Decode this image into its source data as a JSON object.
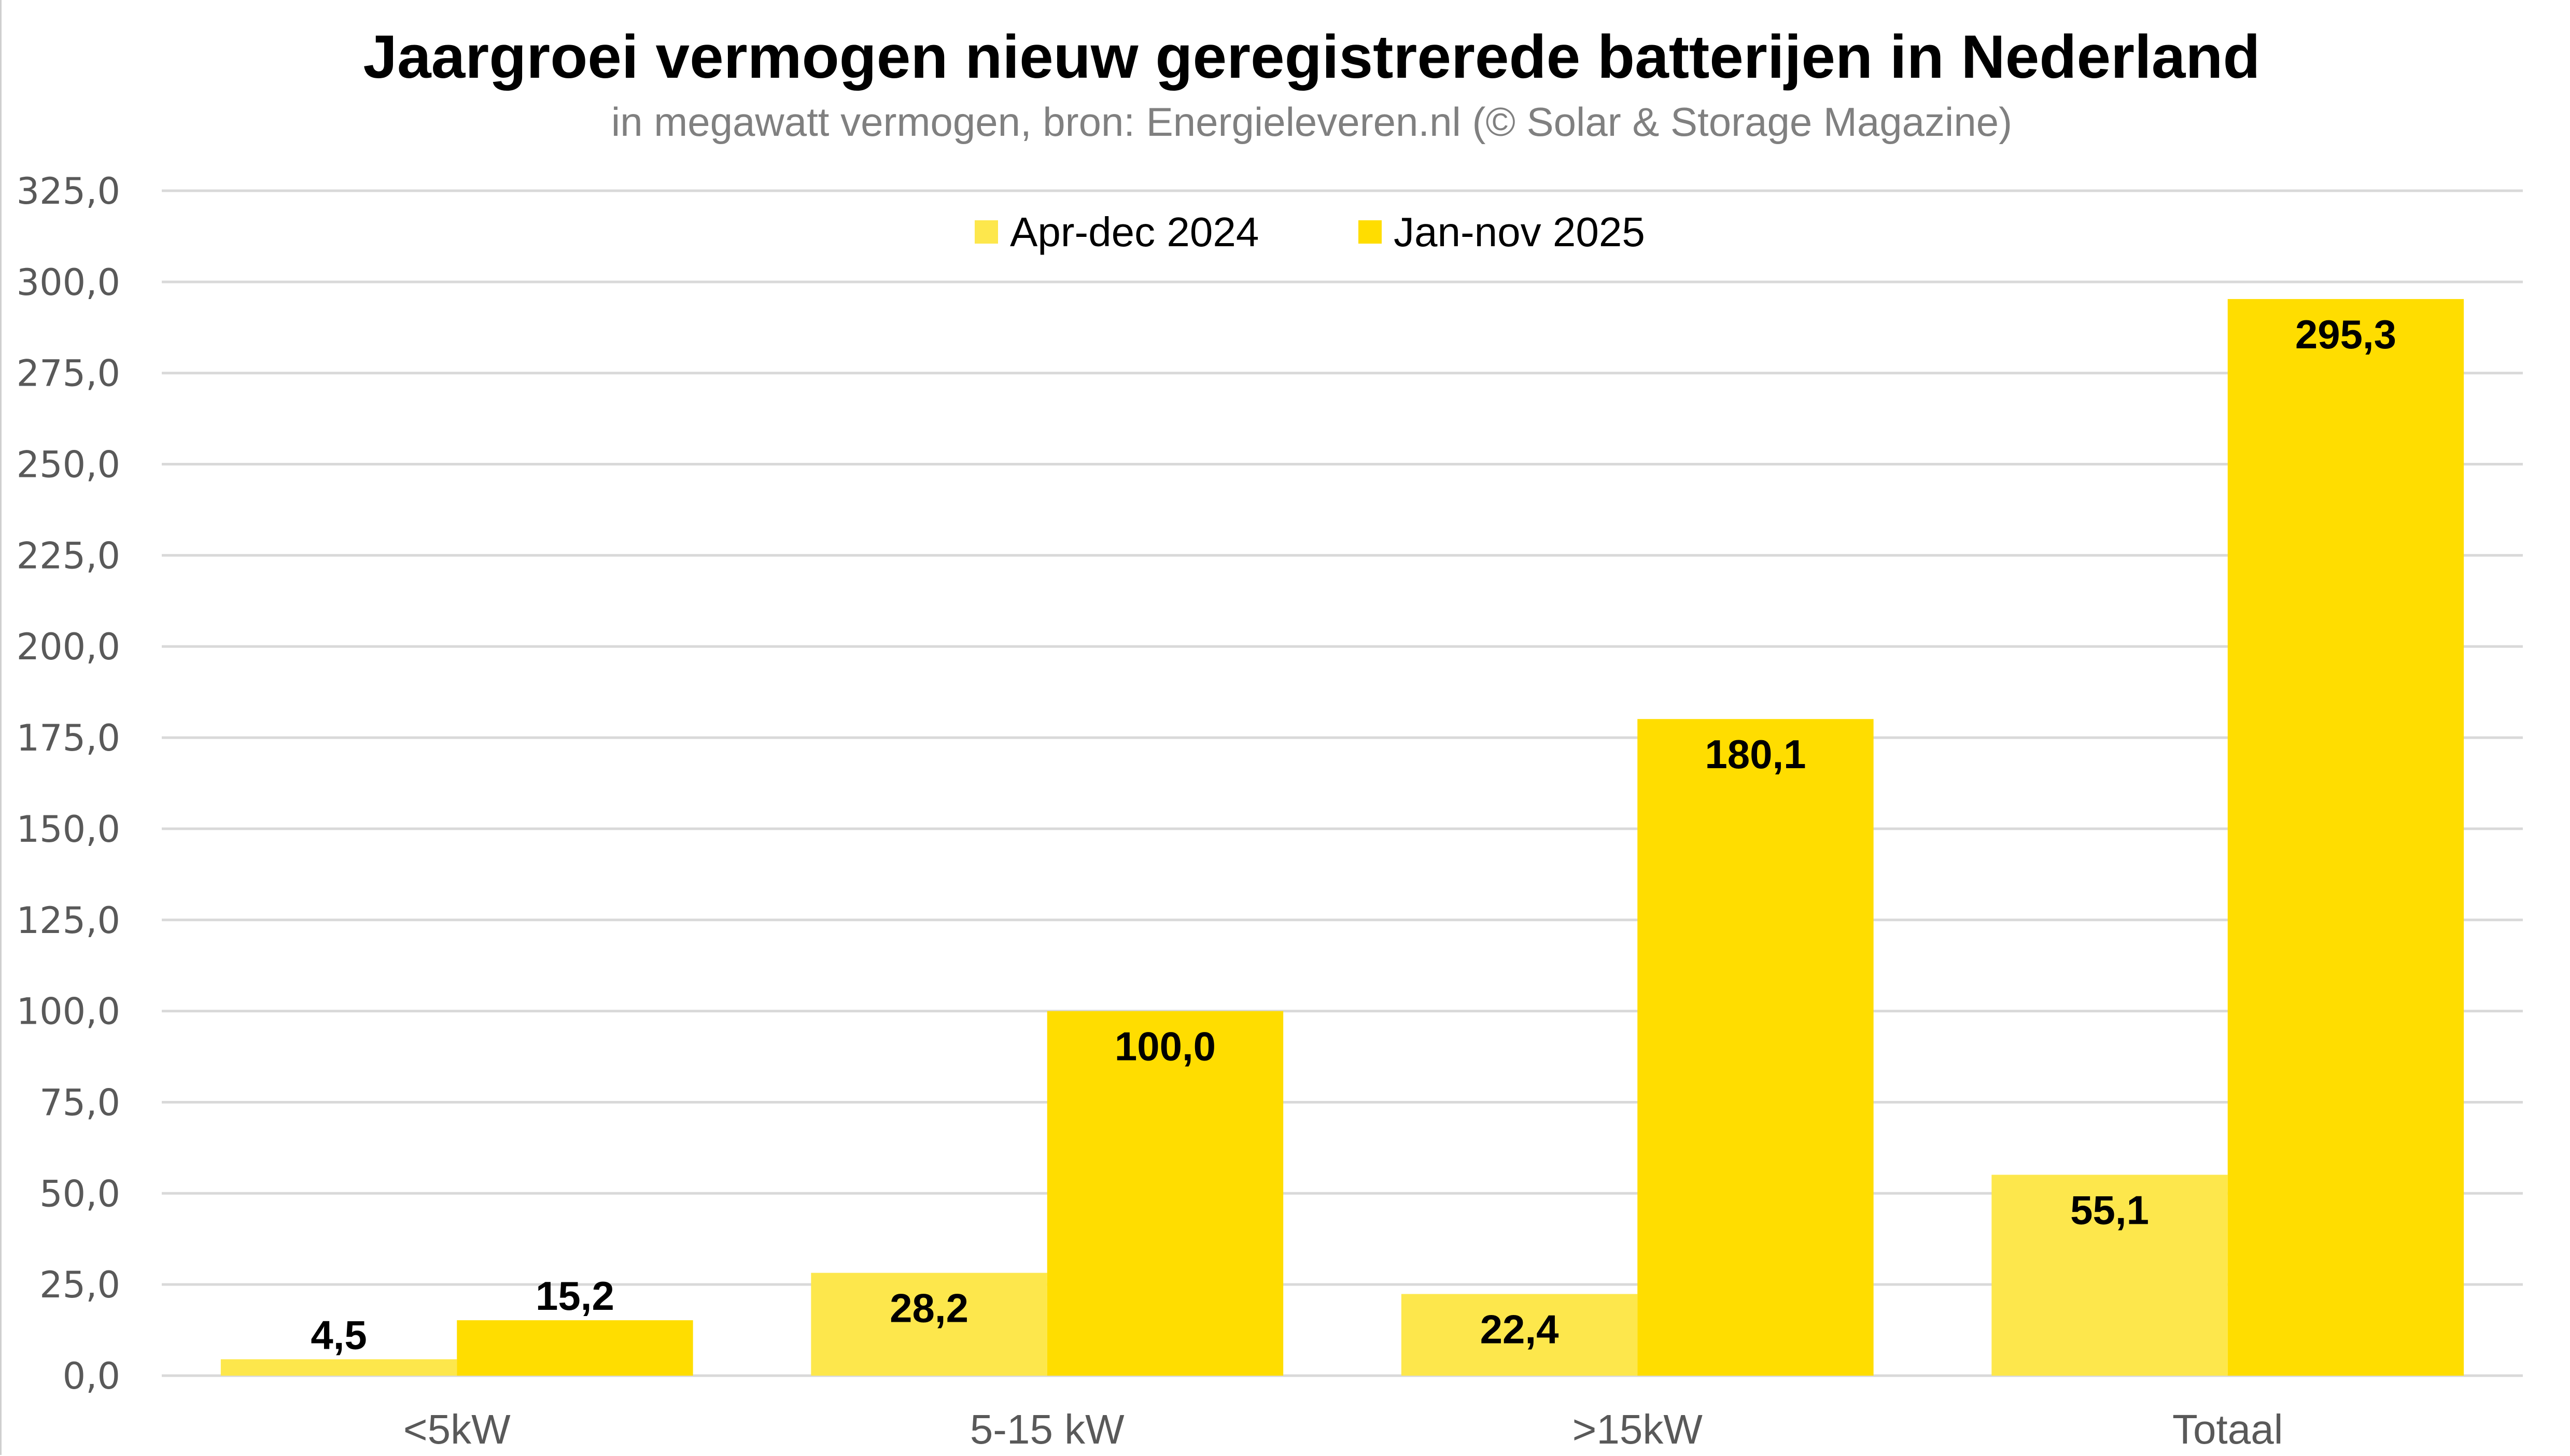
{
  "chart_data": {
    "type": "bar",
    "title": "Jaargroei vermogen nieuw geregistrerede batterijen in Nederland",
    "subtitle": "in megawatt vermogen, bron: Energieleveren.nl (© Solar & Storage Magazine)",
    "xlabel": "",
    "ylabel": "",
    "categories": [
      "<5kW",
      "5-15 kW",
      ">15kW",
      "Totaal"
    ],
    "series": [
      {
        "name": "Apr-dec 2024",
        "color": "#FDE74C",
        "values": [
          4.5,
          28.2,
          22.4,
          55.1
        ],
        "labels": [
          "4,5",
          "28,2",
          "22,4",
          "55,1"
        ]
      },
      {
        "name": "Jan-nov 2025",
        "color": "#FFDD00",
        "values": [
          15.2,
          100.0,
          180.1,
          295.3
        ],
        "labels": [
          "15,2",
          "100,0",
          "180,1",
          "295,3"
        ]
      }
    ],
    "ylim": [
      0,
      325
    ],
    "yticks": [
      0,
      25,
      50,
      75,
      100,
      125,
      150,
      175,
      200,
      225,
      250,
      275,
      300,
      325
    ],
    "ytick_labels": [
      "0,0",
      "25,0",
      "50,0",
      "75,0",
      "100,0",
      "125,0",
      "150,0",
      "175,0",
      "200,0",
      "225,0",
      "250,0",
      "275,0",
      "300,0",
      "325,0"
    ],
    "grid": true,
    "legend_position": "top-center"
  }
}
